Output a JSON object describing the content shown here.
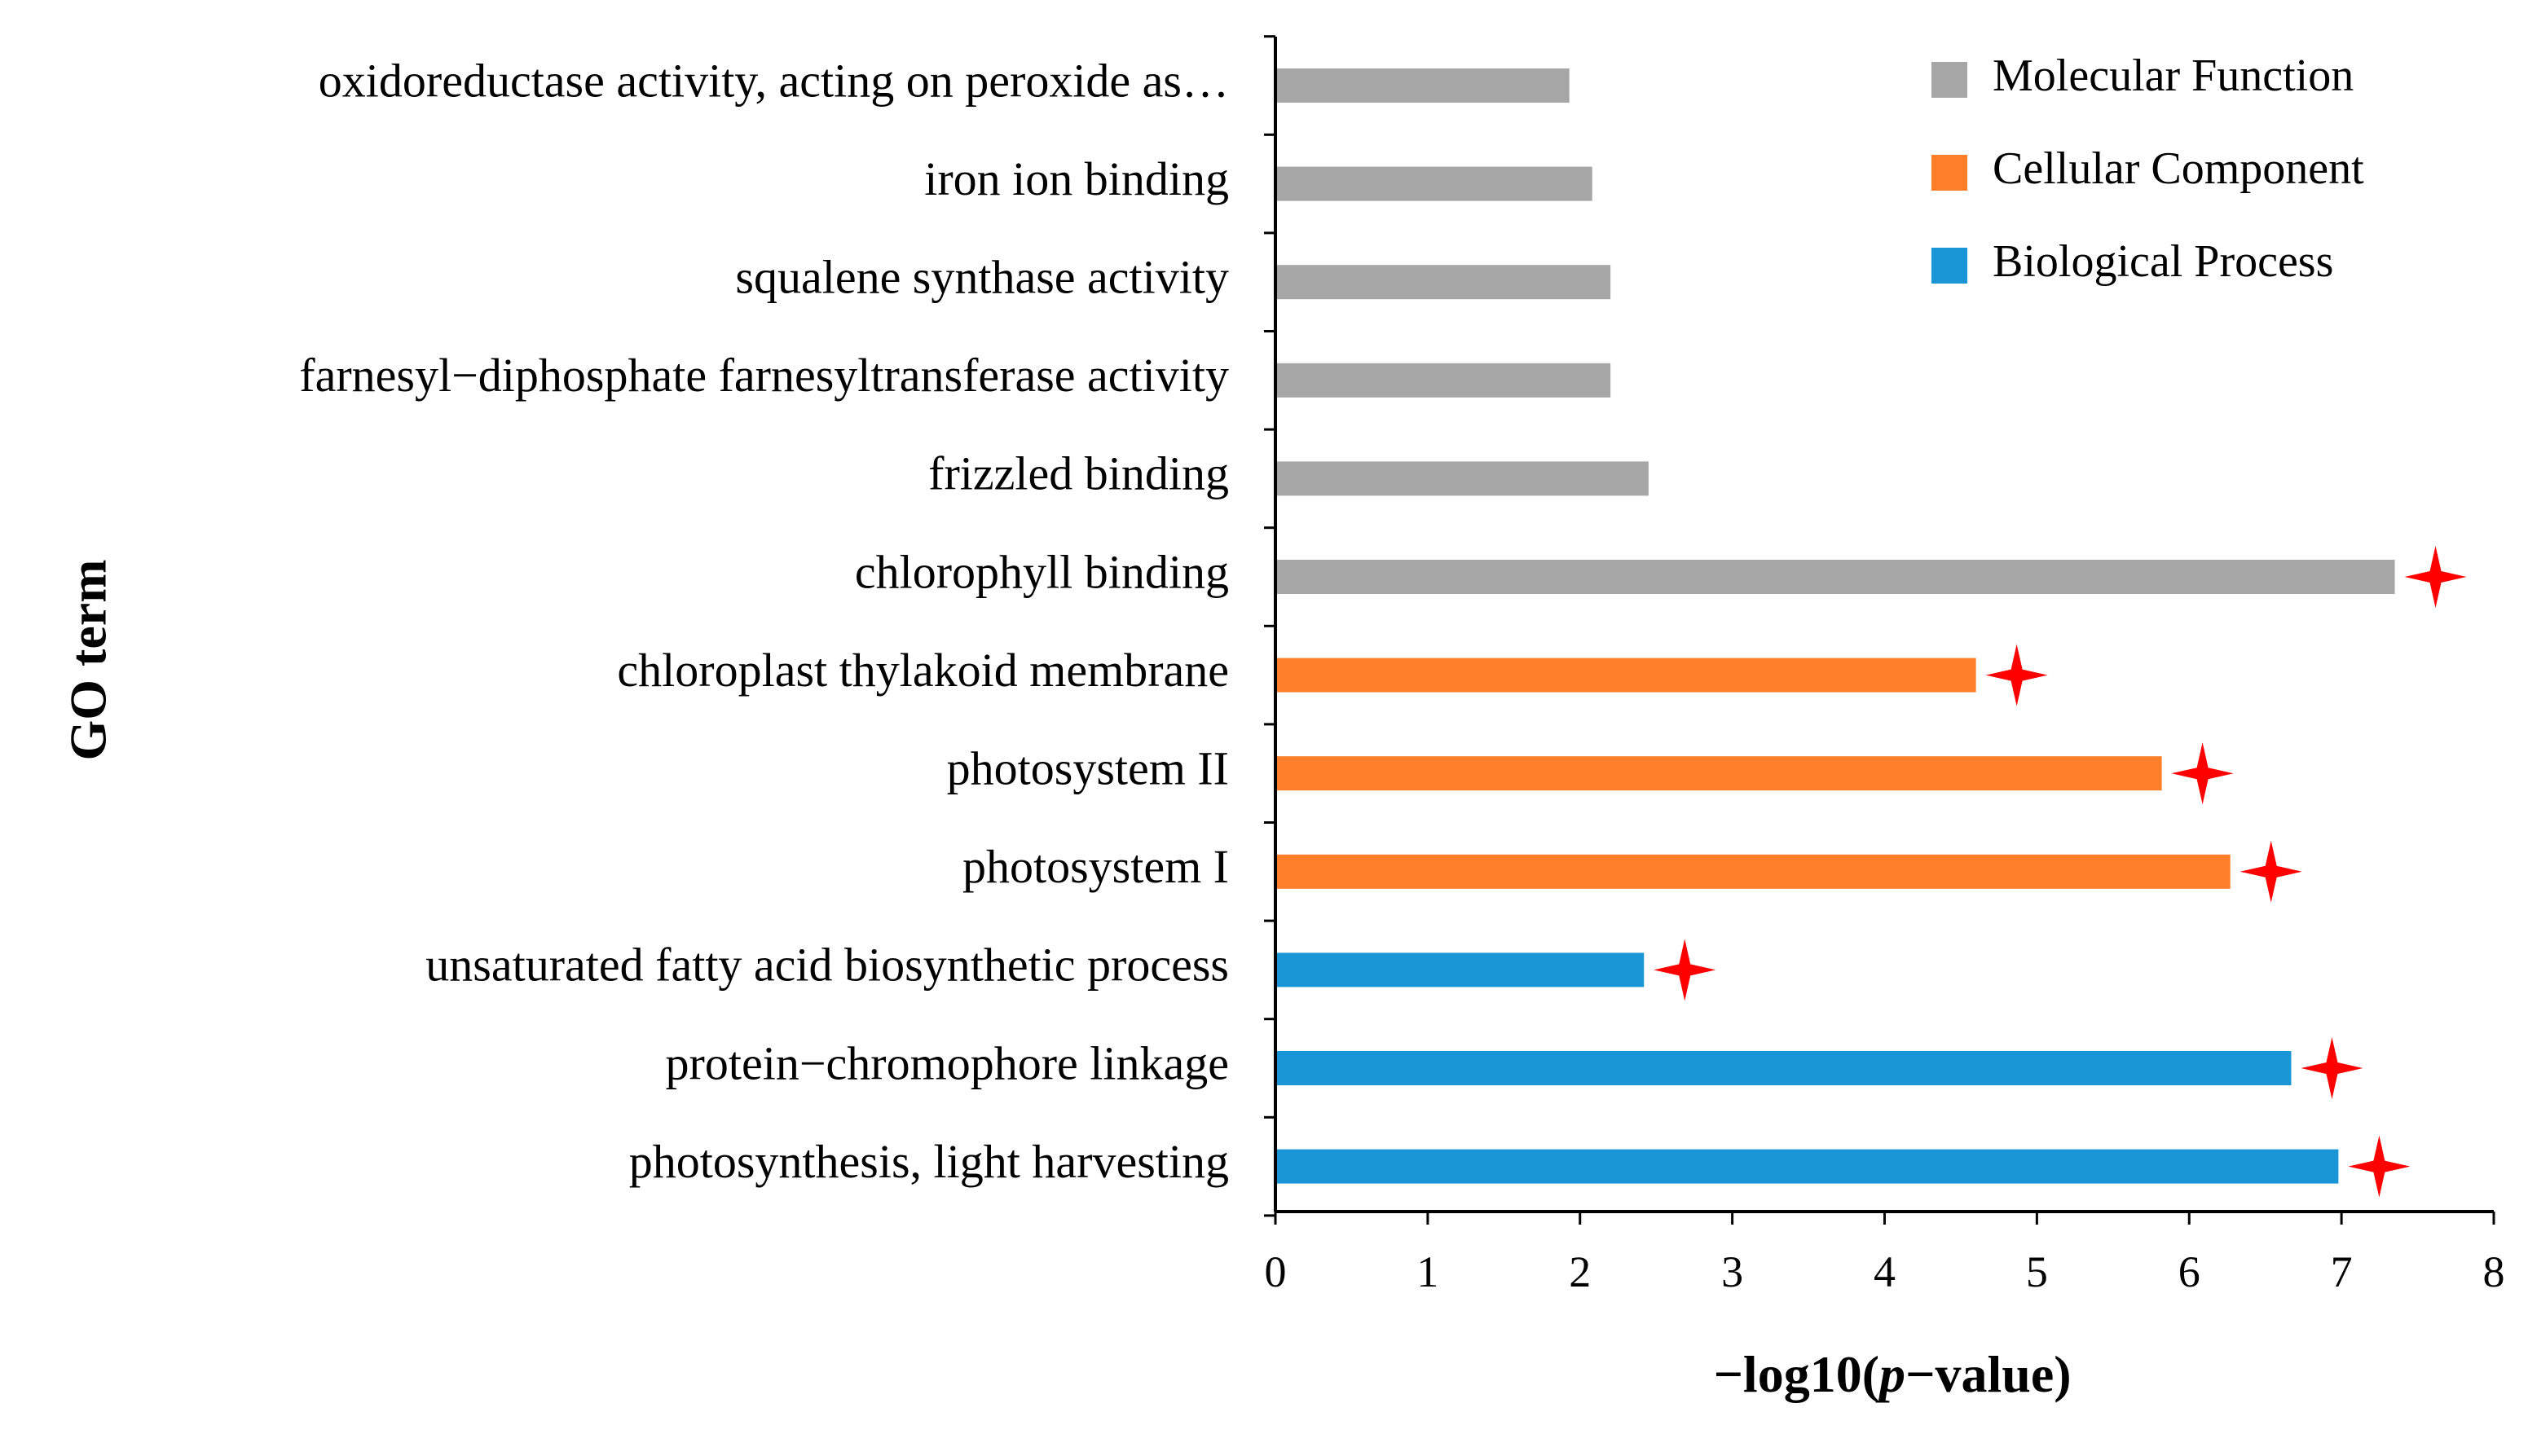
{
  "chart_data": {
    "type": "bar",
    "orientation": "horizontal",
    "xlabel": "−log10(p−value)",
    "xlabel_parts": {
      "prefix": "−log10(",
      "italic": "p",
      "suffix": "−value)"
    },
    "ylabel": "GO term",
    "xlim": [
      0,
      8
    ],
    "xticks": [
      0,
      1,
      2,
      3,
      4,
      5,
      6,
      7,
      8
    ],
    "grid": false,
    "legend_position": "top-right",
    "legend": [
      {
        "name": "Molecular Function",
        "color": "#a6a6a6"
      },
      {
        "name": "Cellular Component",
        "color": "#fd7f29"
      },
      {
        "name": "Biological Process",
        "color": "#1a96d6"
      }
    ],
    "bars": [
      {
        "label": "oxidoreductase activity, acting on peroxide as…",
        "value": 1.93,
        "category": "Molecular Function",
        "significant": false
      },
      {
        "label": "iron ion binding",
        "value": 2.08,
        "category": "Molecular Function",
        "significant": false
      },
      {
        "label": "squalene synthase activity",
        "value": 2.2,
        "category": "Molecular Function",
        "significant": false
      },
      {
        "label": "farnesyl−diphosphate farnesyltransferase activity",
        "value": 2.2,
        "category": "Molecular Function",
        "significant": false
      },
      {
        "label": "frizzled binding",
        "value": 2.45,
        "category": "Molecular Function",
        "significant": false
      },
      {
        "label": "chlorophyll binding",
        "value": 7.35,
        "category": "Molecular Function",
        "significant": true
      },
      {
        "label": "chloroplast thylakoid membrane",
        "value": 4.6,
        "category": "Cellular Component",
        "significant": true
      },
      {
        "label": "photosystem II",
        "value": 5.82,
        "category": "Cellular Component",
        "significant": true
      },
      {
        "label": "photosystem I",
        "value": 6.27,
        "category": "Cellular Component",
        "significant": true
      },
      {
        "label": "unsaturated fatty acid biosynthetic process",
        "value": 2.42,
        "category": "Biological Process",
        "significant": true
      },
      {
        "label": "protein−chromophore linkage",
        "value": 6.67,
        "category": "Biological Process",
        "significant": true
      },
      {
        "label": "photosynthesis, light harvesting",
        "value": 6.98,
        "category": "Biological Process",
        "significant": true
      }
    ],
    "significance_marker_color": "#ff0000"
  }
}
